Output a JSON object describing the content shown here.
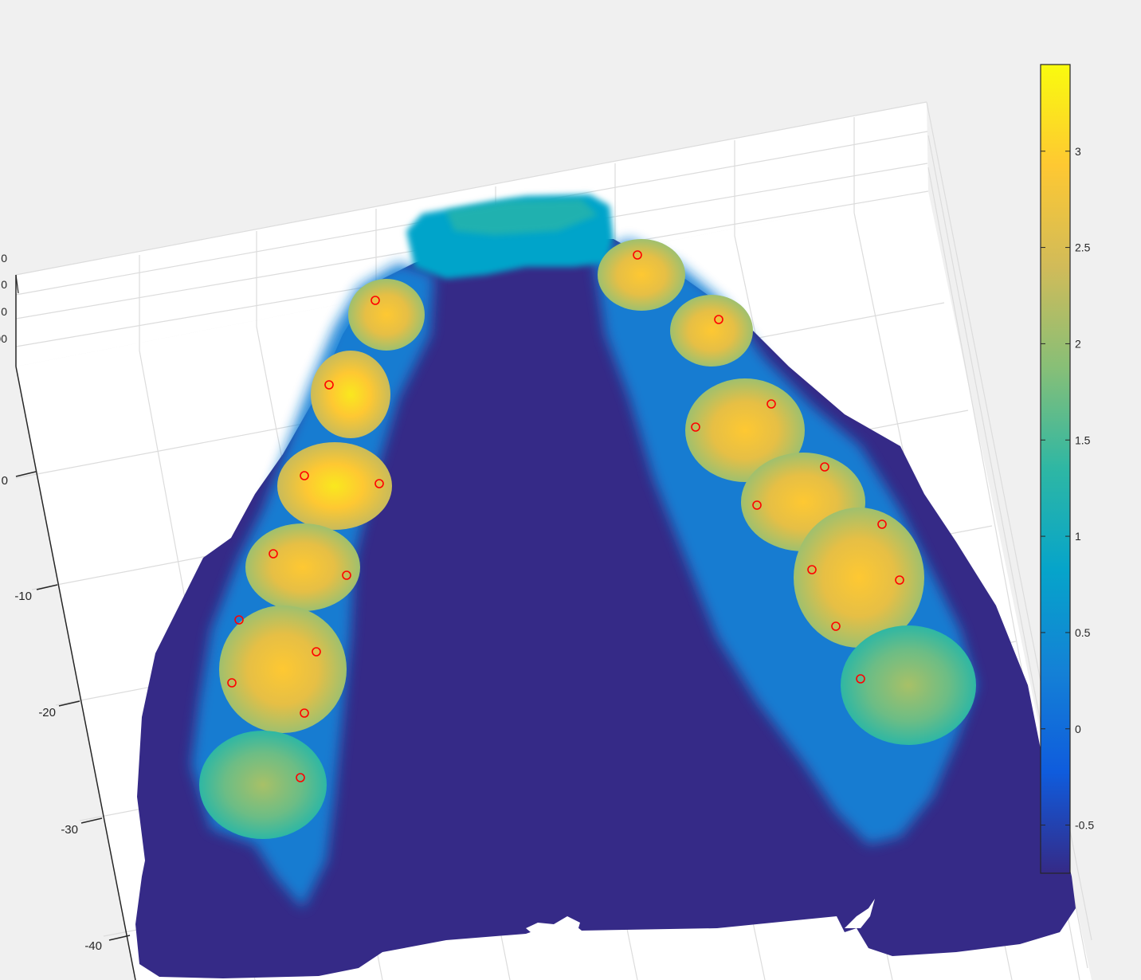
{
  "chart_data": {
    "type": "heatmap",
    "title": "",
    "xlabel": "",
    "ylabel": "",
    "zlabel": "",
    "view": "3-D surface, near top-down",
    "grid": true,
    "colormap": "parula",
    "colormap_colors": [
      "#352a87",
      "#0f5cdd",
      "#1481d6",
      "#06a4ca",
      "#2eb7a4",
      "#87bf77",
      "#d1bb59",
      "#fec832",
      "#f9fb0e"
    ],
    "surface_background_color": "#352a87",
    "marker_color": "#ff0000",
    "marker_symbol": "circle",
    "y_axis": {
      "ticks": [
        0,
        -10,
        -20,
        -30,
        -40
      ],
      "tick_labels": [
        "0",
        "-10",
        "-20",
        "-30",
        "-40"
      ]
    },
    "z_axis_partial_tick_labels": [
      "0",
      "0",
      "0",
      "00"
    ],
    "colorbar": {
      "limits": [
        -0.75,
        3.45
      ],
      "ticks": [
        -0.5,
        0,
        0.5,
        1,
        1.5,
        2,
        2.5,
        3
      ],
      "tick_labels": [
        "-0.5",
        "0",
        "0.5",
        "1",
        "1.5",
        "2",
        "2.5",
        "3"
      ]
    },
    "marker_count": 26
  }
}
